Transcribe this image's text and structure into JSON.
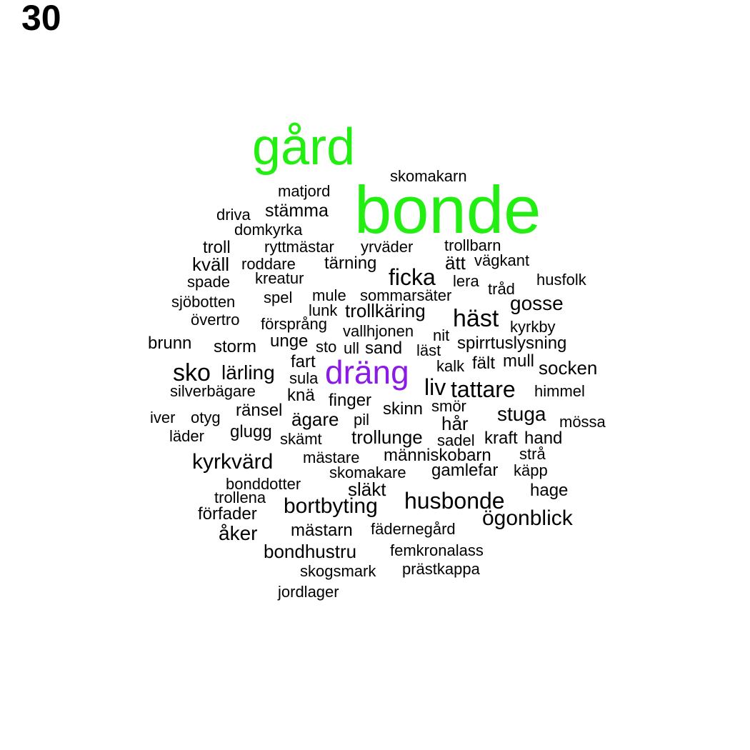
{
  "page_number": "30",
  "colors": {
    "default": "#000000",
    "green": "#22ee11",
    "purple": "#8b1ae6"
  },
  "words": [
    {
      "text": "gård",
      "color": "green"
    },
    {
      "text": "bonde",
      "color": "green"
    },
    {
      "text": "dräng",
      "color": "purple"
    },
    {
      "text": "skomakarn"
    },
    {
      "text": "matjord"
    },
    {
      "text": "driva"
    },
    {
      "text": "stämma"
    },
    {
      "text": "domkyrka"
    },
    {
      "text": "troll"
    },
    {
      "text": "ryttmästar"
    },
    {
      "text": "yrväder"
    },
    {
      "text": "trollbarn"
    },
    {
      "text": "kväll"
    },
    {
      "text": "roddare"
    },
    {
      "text": "tärning"
    },
    {
      "text": "ätt"
    },
    {
      "text": "vägkant"
    },
    {
      "text": "spade"
    },
    {
      "text": "kreatur"
    },
    {
      "text": "ficka"
    },
    {
      "text": "lera"
    },
    {
      "text": "husfolk"
    },
    {
      "text": "tråd"
    },
    {
      "text": "sjöbotten"
    },
    {
      "text": "spel"
    },
    {
      "text": "mule"
    },
    {
      "text": "sommarsäter"
    },
    {
      "text": "gosse"
    },
    {
      "text": "lunk"
    },
    {
      "text": "trollkäring"
    },
    {
      "text": "häst"
    },
    {
      "text": "övertro"
    },
    {
      "text": "försprång"
    },
    {
      "text": "vallhjonen"
    },
    {
      "text": "kyrkby"
    },
    {
      "text": "nit"
    },
    {
      "text": "brunn"
    },
    {
      "text": "storm"
    },
    {
      "text": "unge"
    },
    {
      "text": "sto"
    },
    {
      "text": "ull"
    },
    {
      "text": "sand"
    },
    {
      "text": "läst"
    },
    {
      "text": "spirrtuslysning"
    },
    {
      "text": "fart"
    },
    {
      "text": "kalk"
    },
    {
      "text": "fält"
    },
    {
      "text": "mull"
    },
    {
      "text": "socken"
    },
    {
      "text": "sko"
    },
    {
      "text": "lärling"
    },
    {
      "text": "sula"
    },
    {
      "text": "liv"
    },
    {
      "text": "tattare"
    },
    {
      "text": "himmel"
    },
    {
      "text": "silverbägare"
    },
    {
      "text": "knä"
    },
    {
      "text": "finger"
    },
    {
      "text": "smör"
    },
    {
      "text": "skinn"
    },
    {
      "text": "ränsel"
    },
    {
      "text": "iver"
    },
    {
      "text": "otyg"
    },
    {
      "text": "ägare"
    },
    {
      "text": "pil"
    },
    {
      "text": "hår"
    },
    {
      "text": "stuga"
    },
    {
      "text": "mössa"
    },
    {
      "text": "läder"
    },
    {
      "text": "glugg"
    },
    {
      "text": "skämt"
    },
    {
      "text": "trollunge"
    },
    {
      "text": "sadel"
    },
    {
      "text": "kraft"
    },
    {
      "text": "hand"
    },
    {
      "text": "strå"
    },
    {
      "text": "kyrkvärd"
    },
    {
      "text": "mästare"
    },
    {
      "text": "människobarn"
    },
    {
      "text": "käpp"
    },
    {
      "text": "skomakare"
    },
    {
      "text": "gamlefar"
    },
    {
      "text": "bonddotter"
    },
    {
      "text": "släkt"
    },
    {
      "text": "hage"
    },
    {
      "text": "trollena"
    },
    {
      "text": "husbonde"
    },
    {
      "text": "bortbyting"
    },
    {
      "text": "förfader"
    },
    {
      "text": "ögonblick"
    },
    {
      "text": "åker"
    },
    {
      "text": "mästarn"
    },
    {
      "text": "fädernegård"
    },
    {
      "text": "bondhustru"
    },
    {
      "text": "femkronalass"
    },
    {
      "text": "skogsmark"
    },
    {
      "text": "prästkappa"
    },
    {
      "text": "jordlager"
    }
  ]
}
